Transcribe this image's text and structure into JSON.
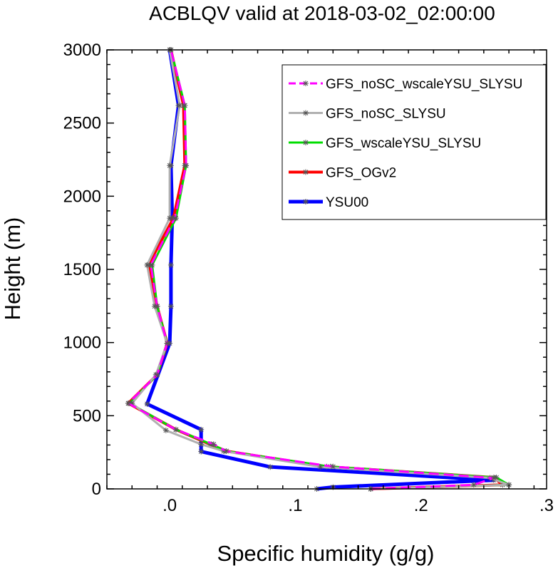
{
  "chart_data": {
    "type": "line",
    "title": "ACBLQV valid at 2018-03-02_02:00:00",
    "xlabel": "Specific humidity (g/g)",
    "ylabel": "Height (m)",
    "xlim": [
      -0.05,
      0.3
    ],
    "ylim": [
      0,
      3000
    ],
    "xticks": [
      0,
      0.1,
      0.2,
      0.3
    ],
    "xtick_labels": [
      ".0",
      ".1",
      ".2",
      ".3"
    ],
    "yticks": [
      0,
      500,
      1000,
      1500,
      2000,
      2500,
      3000
    ],
    "ytick_labels": [
      "0",
      "500",
      "1000",
      "1500",
      "2000",
      "2500",
      "3000"
    ],
    "legend_position": "top-right",
    "series": [
      {
        "name": "YSU00",
        "color": "#0000ff",
        "dash": "solid",
        "points": [
          [
            0.117,
            0
          ],
          [
            0.13,
            12
          ],
          [
            0.258,
            60
          ],
          [
            0.08,
            150
          ],
          [
            0.025,
            255
          ],
          [
            0.025,
            405
          ],
          [
            -0.018,
            580
          ],
          [
            0.0,
            995
          ],
          [
            0.001,
            1248
          ],
          [
            0.001,
            1530
          ],
          [
            0.002,
            1850
          ],
          [
            0.001,
            2210
          ],
          [
            0.007,
            2620
          ],
          [
            0.0,
            3000
          ]
        ]
      },
      {
        "name": "GFS_OGv2",
        "color": "#ff0000",
        "dash": "solid",
        "points": [
          [
            0.16,
            0
          ],
          [
            0.265,
            28
          ],
          [
            0.258,
            78
          ],
          [
            0.125,
            152
          ],
          [
            0.045,
            258
          ],
          [
            0.032,
            305
          ],
          [
            0.005,
            405
          ],
          [
            -0.033,
            585
          ],
          [
            -0.01,
            780
          ],
          [
            -0.002,
            995
          ],
          [
            -0.01,
            1248
          ],
          [
            -0.017,
            1530
          ],
          [
            0.003,
            1850
          ],
          [
            0.012,
            2210
          ],
          [
            0.011,
            2620
          ],
          [
            0.001,
            3000
          ]
        ]
      },
      {
        "name": "GFS_wscaleYSU_SLYSU",
        "color": "#00dd00",
        "dash": "solid",
        "points": [
          [
            0.16,
            0
          ],
          [
            0.27,
            28
          ],
          [
            0.26,
            78
          ],
          [
            0.128,
            152
          ],
          [
            0.045,
            258
          ],
          [
            0.033,
            305
          ],
          [
            0.005,
            405
          ],
          [
            -0.032,
            585
          ],
          [
            -0.01,
            780
          ],
          [
            -0.002,
            995
          ],
          [
            -0.01,
            1248
          ],
          [
            -0.014,
            1530
          ],
          [
            0.005,
            1850
          ],
          [
            0.013,
            2210
          ],
          [
            0.012,
            2620
          ],
          [
            0.001,
            3000
          ]
        ]
      },
      {
        "name": "GFS_noSC_SLYSU",
        "color": "#b0b0b0",
        "dash": "solid",
        "points": [
          [
            0.16,
            0
          ],
          [
            0.27,
            28
          ],
          [
            0.255,
            75
          ],
          [
            0.12,
            150
          ],
          [
            0.043,
            258
          ],
          [
            0.025,
            305
          ],
          [
            -0.003,
            400
          ],
          [
            -0.03,
            585
          ],
          [
            -0.011,
            780
          ],
          [
            -0.002,
            995
          ],
          [
            -0.012,
            1248
          ],
          [
            -0.018,
            1530
          ],
          [
            0.0,
            1850
          ],
          [
            0.0,
            2210
          ],
          [
            0.008,
            2620
          ],
          [
            0.0,
            3000
          ]
        ]
      },
      {
        "name": "GFS_noSC_wscaleYSU_SLYSU",
        "color": "#ff00ff",
        "dash": "dash",
        "points": [
          [
            0.16,
            0
          ],
          [
            0.242,
            28
          ],
          [
            0.258,
            75
          ],
          [
            0.13,
            152
          ],
          [
            0.045,
            258
          ],
          [
            0.035,
            305
          ],
          [
            0.005,
            405
          ],
          [
            -0.033,
            585
          ],
          [
            -0.01,
            780
          ],
          [
            -0.002,
            995
          ],
          [
            -0.01,
            1248
          ],
          [
            -0.015,
            1530
          ],
          [
            0.004,
            1850
          ],
          [
            0.013,
            2210
          ],
          [
            0.012,
            2620
          ],
          [
            0.001,
            3000
          ]
        ]
      }
    ],
    "legend_order": [
      4,
      3,
      2,
      1,
      0
    ]
  }
}
